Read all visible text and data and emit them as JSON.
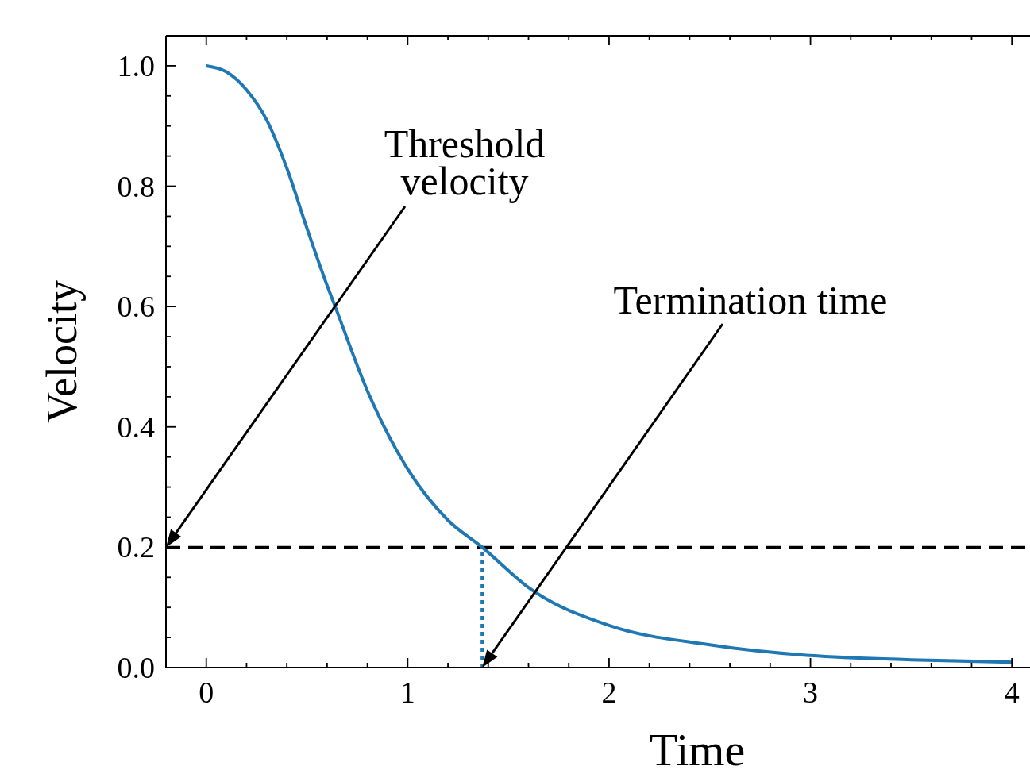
{
  "chart_data": {
    "type": "line",
    "xlabel": "Time",
    "ylabel": "Velocity",
    "xlim": [
      -0.2,
      4.09
    ],
    "ylim": [
      0,
      1.05
    ],
    "xticks": [
      0,
      1,
      2,
      3,
      4
    ],
    "yticks": [
      {
        "value": 0,
        "label": "0.0"
      },
      {
        "value": 0.2,
        "label": "0.2"
      },
      {
        "value": 0.4,
        "label": "0.4"
      },
      {
        "value": 0.6,
        "label": "0.6"
      },
      {
        "value": 0.8,
        "label": "0.8"
      },
      {
        "value": 1,
        "label": "1.0"
      }
    ],
    "series": [
      {
        "color": "#1f77b4",
        "line_style": "solid",
        "x": [
          0,
          0.1,
          0.2,
          0.3,
          0.4,
          0.5,
          0.6,
          0.64,
          0.8,
          1.0,
          1.2,
          1.37,
          1.6,
          2.0,
          2.5,
          3.0,
          3.5,
          4.0
        ],
        "values": [
          1.0,
          0.99,
          0.96,
          0.91,
          0.83,
          0.73,
          0.635,
          0.6,
          0.46,
          0.33,
          0.245,
          0.2,
          0.133,
          0.07,
          0.038,
          0.02,
          0.013,
          0.009
        ]
      },
      {
        "color": "#1f77b4",
        "line_style": "dotted",
        "x": [
          1.37,
          1.37
        ],
        "values": [
          0,
          0.2
        ]
      }
    ],
    "ref_lines": [
      {
        "axis": "y",
        "value": 0.2,
        "color": "#000000",
        "line_style": "dashed"
      }
    ],
    "annotations": [
      "Threshold velocity",
      "Termination time"
    ],
    "grid": false
  }
}
